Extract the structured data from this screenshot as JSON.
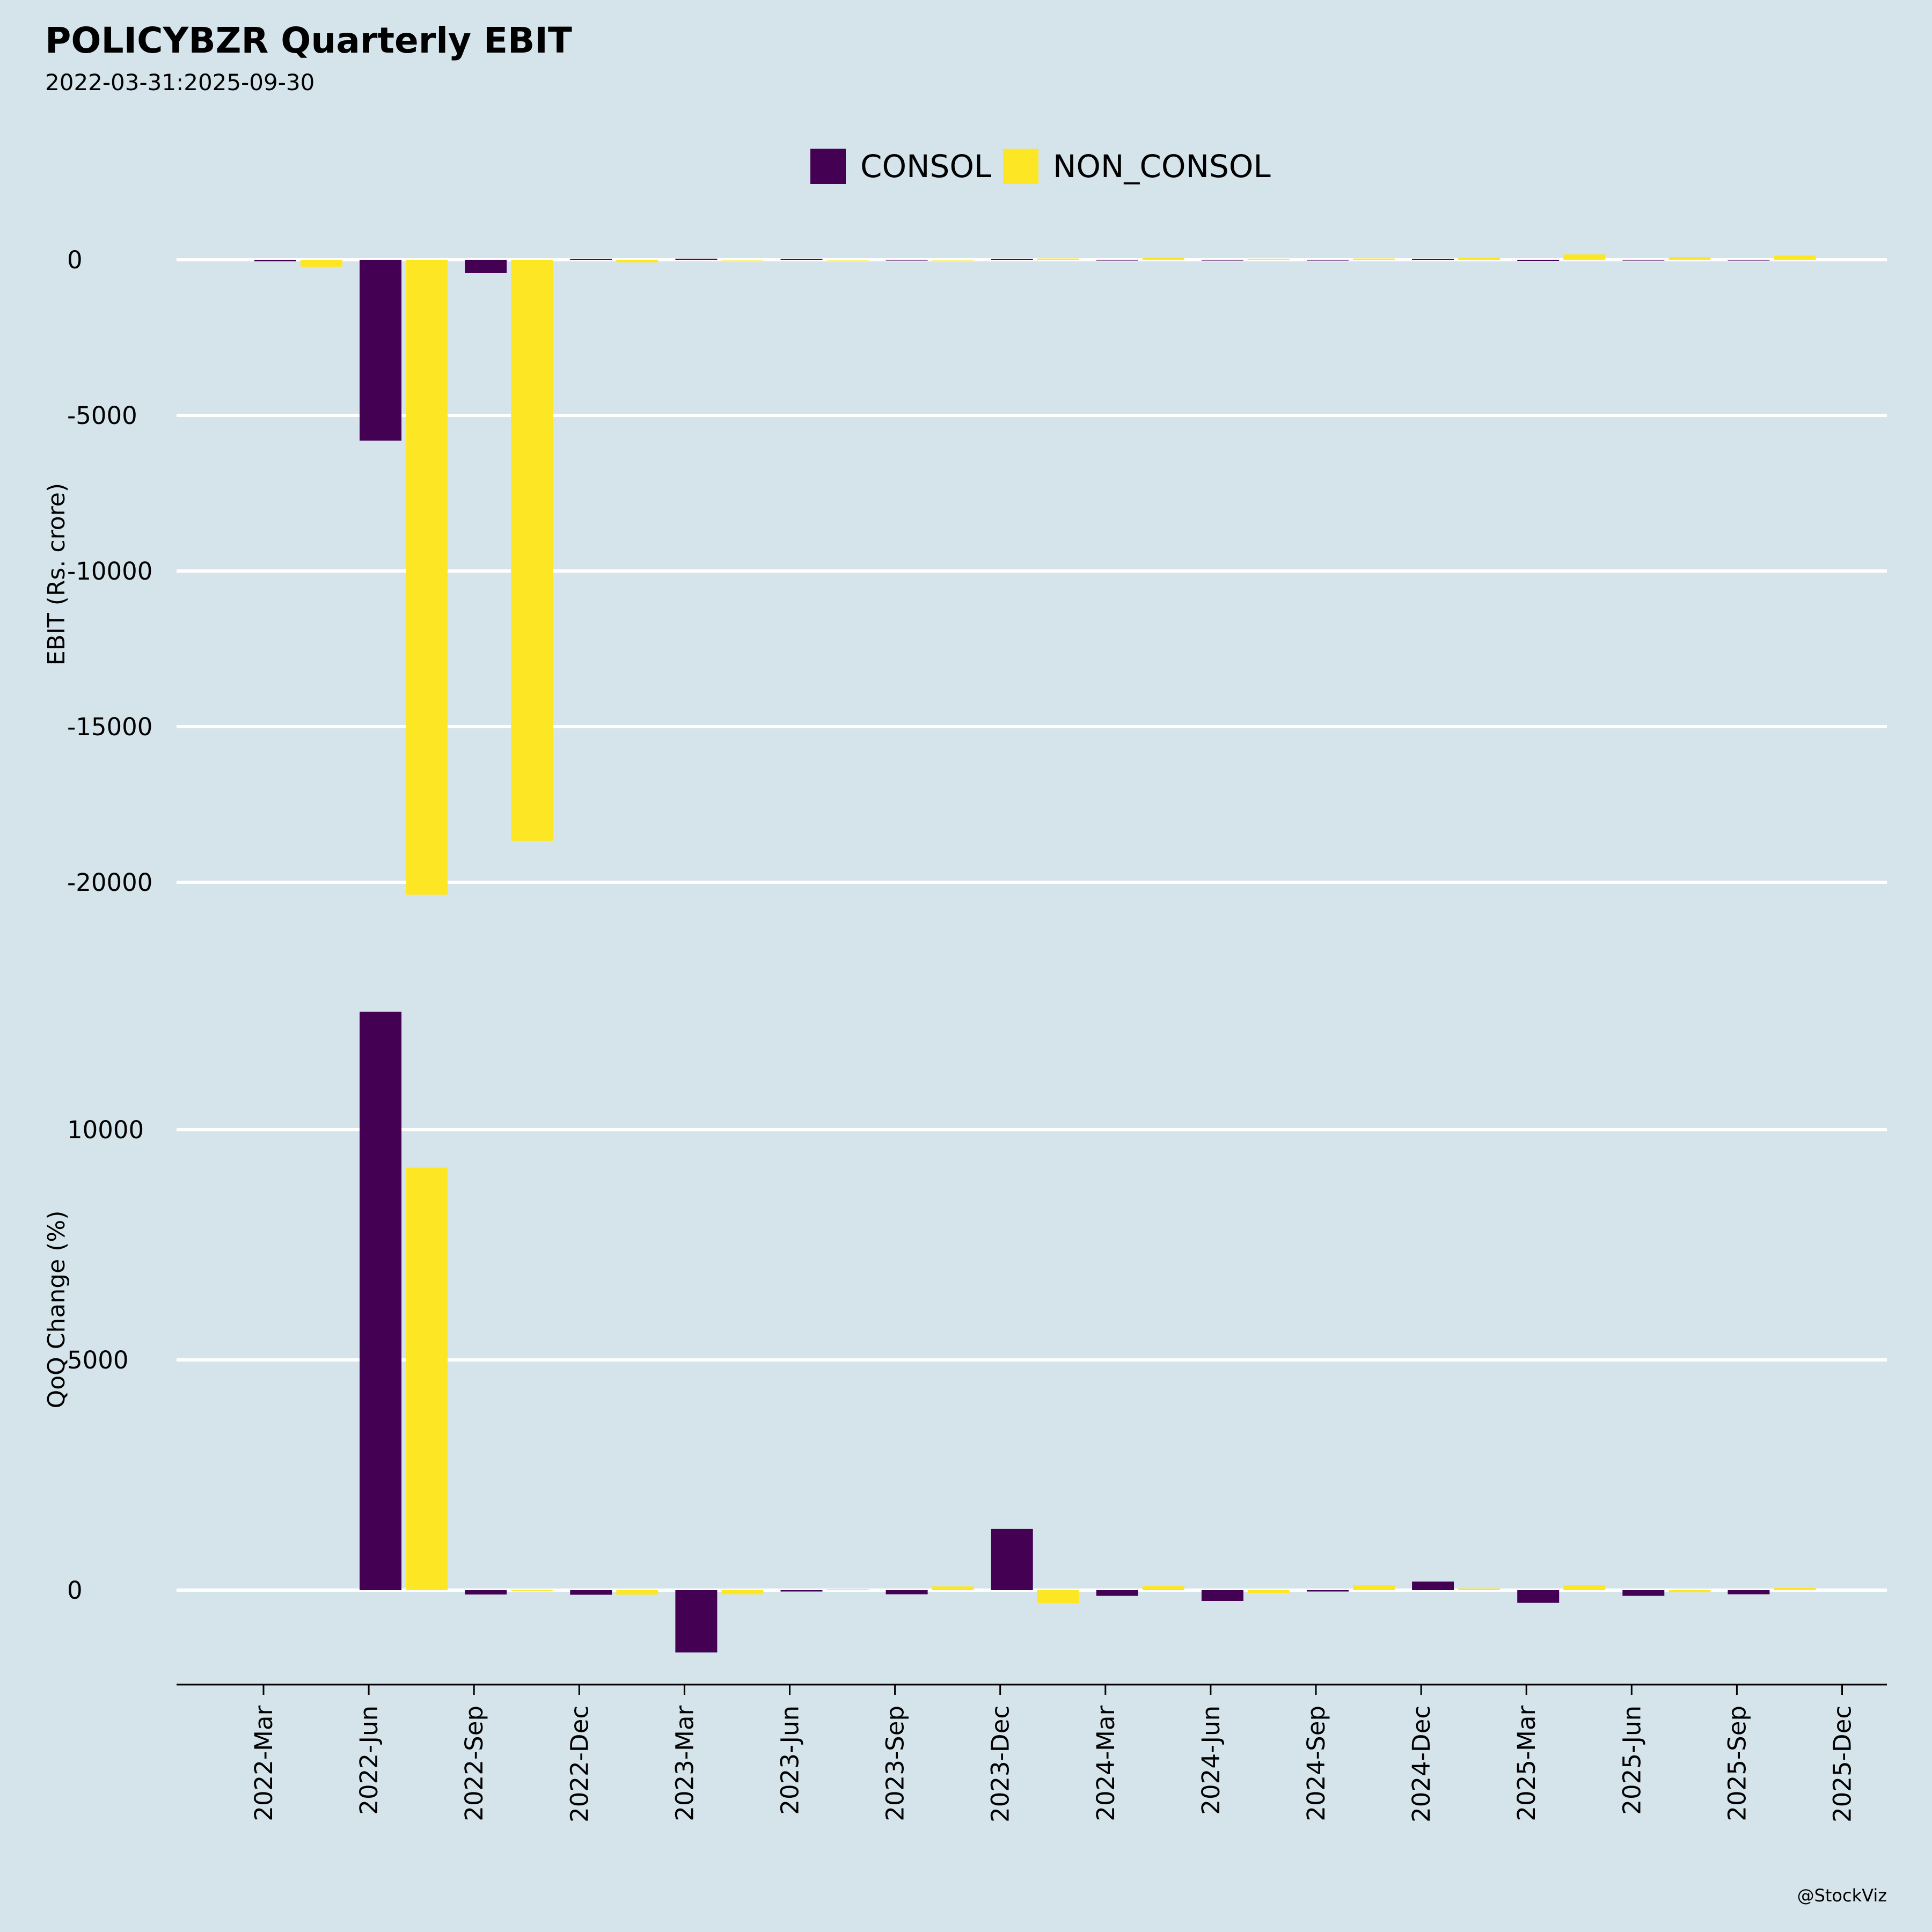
{
  "chart_data": {
    "type": "bar",
    "title": "POLICYBZR Quarterly EBIT",
    "subtitle": "2022-03-31:2025-09-30",
    "legend": {
      "position": "top-center",
      "entries": [
        "CONSOL",
        "NON_CONSOL"
      ]
    },
    "colors": {
      "CONSOL": "#440154",
      "NON_CONSOL": "#fde725",
      "background": "#d5e4eb",
      "grid": "#ffffff"
    },
    "categories": [
      "2022-Mar",
      "2022-Jun",
      "2022-Sep",
      "2022-Dec",
      "2023-Mar",
      "2023-Jun",
      "2023-Sep",
      "2023-Dec",
      "2024-Mar",
      "2024-Jun",
      "2024-Sep",
      "2024-Dec",
      "2025-Mar",
      "2025-Jun",
      "2025-Sep",
      "2025-Dec"
    ],
    "panels": [
      {
        "name": "ebit",
        "ylabel": "EBIT (Rs. crore)",
        "yticks": [
          0,
          -5000,
          -10000,
          -15000,
          -20000
        ],
        "ytick_labels": [
          "0",
          "-5000",
          "-10000",
          "-15000",
          "-20000"
        ],
        "grid": true,
        "series": [
          {
            "name": "CONSOL",
            "values": [
              -50,
              -5810,
              -430,
              5,
              35,
              15,
              -5,
              20,
              -10,
              -20,
              -15,
              15,
              -35,
              -20,
              -5,
              null
            ]
          },
          {
            "name": "NON_CONSOL",
            "values": [
              -225,
              -20400,
              -18670,
              -85,
              -10,
              -10,
              -20,
              40,
              70,
              20,
              40,
              60,
              170,
              85,
              140,
              null
            ]
          }
        ]
      },
      {
        "name": "qoq",
        "ylabel": "QoQ Change (%)",
        "yticks": [
          0,
          5000,
          10000
        ],
        "ytick_labels": [
          "0",
          "5000",
          "10000"
        ],
        "grid": true,
        "series": [
          {
            "name": "CONSOL",
            "values": [
              null,
              12560,
              -95,
              -100,
              -1354,
              -30,
              -90,
              1330,
              -124,
              -233,
              -30,
              187,
              -276,
              -124,
              -90,
              null
            ]
          },
          {
            "name": "NON_CONSOL",
            "values": [
              null,
              9177,
              -5,
              -98,
              -90,
              20,
              80,
              -283,
              90,
              -58,
              105,
              35,
              105,
              -47,
              50,
              null
            ]
          }
        ]
      }
    ],
    "watermark": "@StockViz"
  }
}
